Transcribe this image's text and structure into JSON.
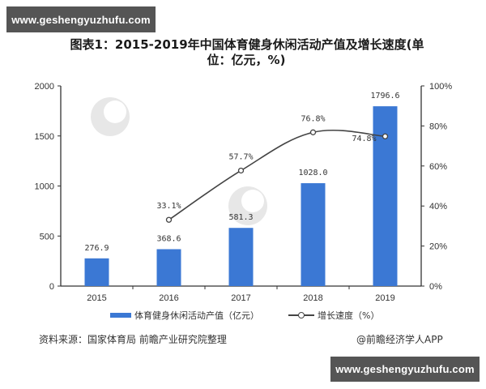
{
  "watermarks": {
    "top": "www.geshengyuzhufu.com",
    "bottom": "www.geshengyuzhufu.com",
    "background": "前瞻产业研究院"
  },
  "title": {
    "line1": "图表1：2015-2019年中国体育健身休闲活动产值及增长速度(单",
    "line2": "位：亿元，%)"
  },
  "legend": {
    "bar_label": "体育健身休闲活动产值（亿元）",
    "line_label": "增长速度（%）"
  },
  "footer": {
    "source": "资料来源：国家体育局 前瞻产业研究院整理",
    "credit": "@前瞻经济学人APP"
  },
  "colors": {
    "bar": "#3b78d4",
    "line": "#444444",
    "axis": "#333333",
    "watermark_bg": "#555555"
  },
  "chart_data": {
    "type": "bar",
    "title": "图表1：2015-2019年中国体育健身休闲活动产值及增长速度(单位：亿元，%)",
    "categories": [
      "2015",
      "2016",
      "2017",
      "2018",
      "2019"
    ],
    "series": [
      {
        "name": "体育健身休闲活动产值（亿元）",
        "type": "bar",
        "axis": "left",
        "values": [
          276.9,
          368.6,
          581.3,
          1028.0,
          1796.6
        ],
        "labels": [
          "276.9",
          "368.6",
          "581.3",
          "1028.0",
          "1796.6"
        ]
      },
      {
        "name": "增长速度（%）",
        "type": "line",
        "axis": "right",
        "values": [
          null,
          33.1,
          57.7,
          76.8,
          74.8
        ],
        "labels": [
          "",
          "33.1%",
          "57.7%",
          "76.8%",
          "74.8%"
        ]
      }
    ],
    "xlabel": "",
    "ylabel_left": "",
    "ylabel_right": "",
    "ylim_left": [
      0,
      2000
    ],
    "yticks_left": [
      "0",
      "500",
      "1000",
      "1500",
      "2000"
    ],
    "ylim_right": [
      0,
      100
    ],
    "yticks_right": [
      "0%",
      "20%",
      "40%",
      "60%",
      "80%",
      "100%"
    ],
    "grid": false,
    "legend_position": "bottom"
  }
}
